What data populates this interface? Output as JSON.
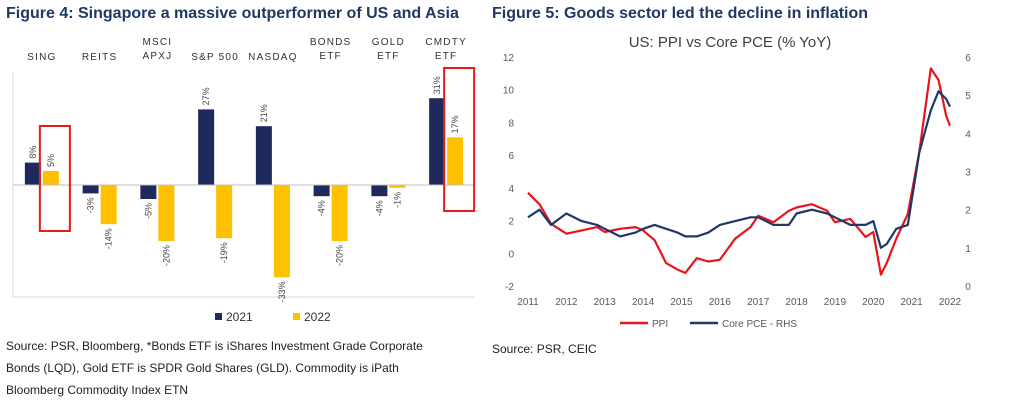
{
  "figure4": {
    "title": "Figure 4: Singapore a massive outperformer of US and Asia",
    "source_lines": [
      "Source: PSR, Bloomberg, *Bonds ETF is iShares Investment Grade Corporate",
      "Bonds (LQD), Gold ETF is SPDR Gold Shares (GLD). Commodity is iPath",
      "Bloomberg Commodity Index ETN"
    ],
    "colors": {
      "2021": "#1f2a5c",
      "2022": "#ffc000",
      "highlight": "#e31c1c"
    }
  },
  "figure5": {
    "title": "Figure 5: Goods sector led the decline in inflation",
    "source": "Source:  PSR, CEIC",
    "colors": {
      "PPI": "#e8141b",
      "Core PCE - RHS": "#203864"
    }
  },
  "chart_data": [
    {
      "type": "bar",
      "categories": [
        [
          "SING"
        ],
        [
          "REITS"
        ],
        [
          "MSCI",
          "APXJ"
        ],
        [
          "S&P 500"
        ],
        [
          "NASDAQ"
        ],
        [
          "BONDS",
          "ETF"
        ],
        [
          "GOLD",
          "ETF"
        ],
        [
          "CMDTY",
          "ETF"
        ]
      ],
      "series": [
        {
          "name": "2021",
          "values": [
            8,
            -3,
            -5,
            27,
            21,
            -4,
            -4,
            31
          ],
          "labels": [
            "8%",
            "-3%",
            "-5%",
            "27%",
            "21%",
            "-4%",
            "-4%",
            "31%"
          ]
        },
        {
          "name": "2022",
          "values": [
            5,
            -14,
            -20,
            -19,
            -33,
            -20,
            -1,
            17
          ],
          "labels": [
            "5%",
            "-14%",
            "-20%",
            "-19%",
            "-33%",
            "-20%",
            "-1%",
            "17%"
          ]
        }
      ],
      "highlighted_categories": [
        0,
        7
      ],
      "legend_position": "bottom",
      "ylim": [
        -40,
        40
      ]
    },
    {
      "type": "line",
      "title": "US: PPI vs Core PCE (% YoY)",
      "x_ticks": [
        "2011",
        "2012",
        "2013",
        "2014",
        "2015",
        "2016",
        "2017",
        "2018",
        "2019",
        "2020",
        "2021",
        "2022"
      ],
      "y_left_ticks": [
        "-2",
        "0",
        "2",
        "4",
        "6",
        "8",
        "10",
        "12"
      ],
      "y_right_ticks": [
        "0",
        "1",
        "2",
        "3",
        "4",
        "5",
        "6"
      ],
      "y_left_range": [
        -2,
        12
      ],
      "y_right_range": [
        0,
        6
      ],
      "legend_position": "bottom",
      "series": [
        {
          "name": "PPI",
          "axis": "left",
          "x": [
            2011.0,
            2011.3,
            2011.6,
            2012.0,
            2012.4,
            2012.8,
            2013.0,
            2013.4,
            2013.8,
            2014.0,
            2014.3,
            2014.6,
            2014.9,
            2015.1,
            2015.4,
            2015.7,
            2016.0,
            2016.4,
            2016.8,
            2017.0,
            2017.4,
            2017.8,
            2018.0,
            2018.4,
            2018.8,
            2019.0,
            2019.4,
            2019.8,
            2020.0,
            2020.2,
            2020.35,
            2020.6,
            2020.9,
            2021.2,
            2021.5,
            2021.7,
            2021.9,
            2022.0
          ],
          "y": [
            3.7,
            3.0,
            1.8,
            1.2,
            1.4,
            1.6,
            1.3,
            1.5,
            1.6,
            1.4,
            0.8,
            -0.6,
            -1.0,
            -1.2,
            -0.3,
            -0.5,
            -0.4,
            0.9,
            1.6,
            2.3,
            1.9,
            2.6,
            2.8,
            3.0,
            2.6,
            1.9,
            2.1,
            1.0,
            1.3,
            -1.3,
            -0.6,
            0.9,
            2.4,
            6.2,
            11.3,
            10.6,
            8.4,
            7.8
          ]
        },
        {
          "name": "Core PCE - RHS",
          "axis": "right",
          "x": [
            2011.0,
            2011.3,
            2011.6,
            2012.0,
            2012.4,
            2012.8,
            2013.0,
            2013.4,
            2013.8,
            2014.0,
            2014.3,
            2014.6,
            2014.9,
            2015.1,
            2015.4,
            2015.7,
            2016.0,
            2016.4,
            2016.8,
            2017.0,
            2017.4,
            2017.8,
            2018.0,
            2018.4,
            2018.8,
            2019.0,
            2019.4,
            2019.8,
            2020.0,
            2020.2,
            2020.35,
            2020.6,
            2020.9,
            2021.2,
            2021.5,
            2021.7,
            2021.9,
            2022.0
          ],
          "y": [
            1.8,
            2.0,
            1.6,
            1.9,
            1.7,
            1.6,
            1.5,
            1.3,
            1.4,
            1.5,
            1.6,
            1.5,
            1.4,
            1.3,
            1.3,
            1.4,
            1.6,
            1.7,
            1.8,
            1.8,
            1.6,
            1.6,
            1.9,
            2.0,
            1.9,
            1.8,
            1.6,
            1.6,
            1.7,
            1.0,
            1.1,
            1.5,
            1.6,
            3.5,
            4.6,
            5.1,
            4.9,
            4.7
          ]
        }
      ]
    }
  ]
}
